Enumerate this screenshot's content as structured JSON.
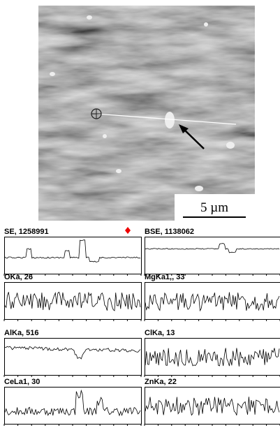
{
  "image": {
    "scale_bar": "5 µm"
  },
  "panels": [
    {
      "label": "SE, 1258991"
    },
    {
      "label": "BSE, 1138062"
    },
    {
      "label": "OKa, 26"
    },
    {
      "label": "MgKa1,, 33"
    },
    {
      "label": "AlKa, 516"
    },
    {
      "label": "ClKa, 13"
    },
    {
      "label": "CeLa1, 30"
    },
    {
      "label": "ZnKa, 22"
    }
  ]
}
